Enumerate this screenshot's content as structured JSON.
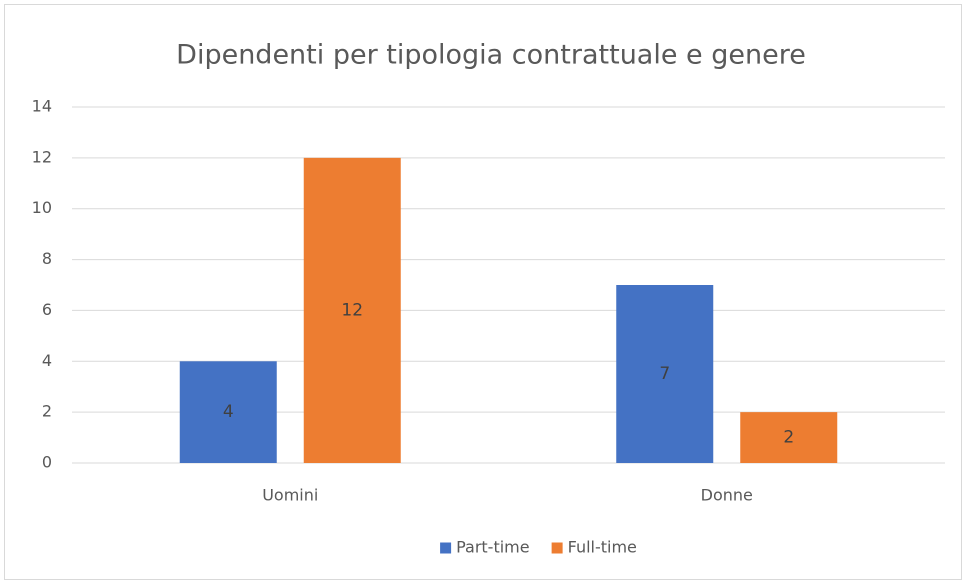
{
  "chart_data": {
    "type": "bar",
    "title": "Dipendenti per tipologia contrattuale e genere",
    "categories": [
      "Uomini",
      "Donne"
    ],
    "series": [
      {
        "name": "Part-time",
        "color": "#4472c4",
        "values": [
          4,
          7
        ]
      },
      {
        "name": "Full-time",
        "color": "#ed7d31",
        "values": [
          12,
          2
        ]
      }
    ],
    "ylim": [
      0,
      14
    ],
    "yticks": [
      0,
      2,
      4,
      6,
      8,
      10,
      12,
      14
    ],
    "grid": true,
    "legend": "bottom"
  }
}
